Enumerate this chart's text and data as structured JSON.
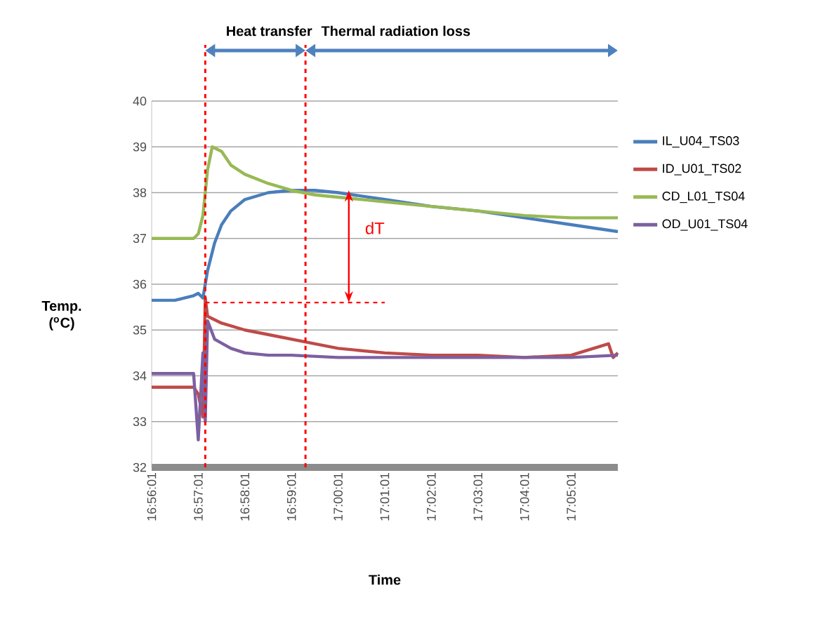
{
  "chart_data": {
    "type": "line",
    "xlabel": "Time",
    "ylabel": "Temp. ($^{o}$C)",
    "annotations": [
      "Heat transfer",
      "Thermal radiation  loss",
      "dT"
    ],
    "xlim": [
      16.93361,
      17.10028
    ],
    "ylim": [
      32,
      40
    ],
    "yticks": [
      32,
      33,
      34,
      35,
      36,
      37,
      38,
      39,
      40
    ],
    "xticks": [
      {
        "value": 16.93361,
        "label": "16:56:01"
      },
      {
        "value": 16.95028,
        "label": "16:57:01"
      },
      {
        "value": 16.96694,
        "label": "16:58:01"
      },
      {
        "value": 16.98361,
        "label": "16:59:01"
      },
      {
        "value": 17.00028,
        "label": "17:00:01"
      },
      {
        "value": 17.01694,
        "label": "17:01:01"
      },
      {
        "value": 17.03361,
        "label": "17:02:01"
      },
      {
        "value": 17.05028,
        "label": "17:03:01"
      },
      {
        "value": 17.06694,
        "label": "17:04:01"
      },
      {
        "value": 17.08361,
        "label": "17:05:01"
      }
    ],
    "grid": "y",
    "legend": "right",
    "marker": "none",
    "line_style": "solid",
    "ref_lines": [
      {
        "axis": "x",
        "value": 16.95278,
        "color": "#ff0000",
        "line_style": "dashed"
      },
      {
        "axis": "x",
        "value": 16.98861,
        "color": "#ff0000",
        "line_style": "dashed"
      }
    ],
    "series": [
      {
        "name": "IL_U04_TS03",
        "color": "#4a7ebb",
        "x": [
          16.93361,
          16.94194,
          16.94861,
          16.95028,
          16.95194,
          16.95361,
          16.95611,
          16.95861,
          16.96194,
          16.96694,
          16.97528,
          16.98361,
          16.99194,
          17.00028,
          17.01694,
          17.03361,
          17.05028,
          17.06694,
          17.08361,
          17.10028
        ],
        "values": [
          35.65,
          35.65,
          35.75,
          35.8,
          35.7,
          36.3,
          36.9,
          37.3,
          37.6,
          37.85,
          38.0,
          38.05,
          38.05,
          38.0,
          37.85,
          37.7,
          37.6,
          37.45,
          37.3,
          37.15
        ]
      },
      {
        "name": "ID_U01_TS02",
        "color": "#be4b48",
        "x": [
          16.93361,
          16.94861,
          16.95028,
          16.95194,
          16.95278,
          16.95361,
          16.95861,
          16.96694,
          16.97528,
          16.98361,
          16.99194,
          17.00028,
          17.01694,
          17.03361,
          17.05028,
          17.06694,
          17.08361,
          17.09694,
          17.09861,
          17.10028
        ],
        "values": [
          33.75,
          33.75,
          33.6,
          33.1,
          35.7,
          35.3,
          35.15,
          35.0,
          34.9,
          34.8,
          34.7,
          34.6,
          34.5,
          34.45,
          34.45,
          34.4,
          34.45,
          34.7,
          34.4,
          34.5
        ]
      },
      {
        "name": "CD_L01_TS04",
        "color": "#98b954",
        "x": [
          16.93361,
          16.94861,
          16.95028,
          16.95194,
          16.95361,
          16.95528,
          16.95861,
          16.96194,
          16.96694,
          16.97528,
          16.98361,
          16.99194,
          17.00028,
          17.01694,
          17.03361,
          17.05028,
          17.06694,
          17.08361,
          17.10028
        ],
        "values": [
          37.0,
          37.0,
          37.1,
          37.5,
          38.5,
          39.0,
          38.9,
          38.6,
          38.4,
          38.2,
          38.05,
          37.95,
          37.9,
          37.8,
          37.7,
          37.6,
          37.5,
          37.45,
          37.45
        ]
      },
      {
        "name": "OD_U01_TS04",
        "color": "#7d60a0",
        "x": [
          16.93361,
          16.94861,
          16.95028,
          16.95194,
          16.95278,
          16.95361,
          16.95611,
          16.96194,
          16.96694,
          16.97528,
          16.98361,
          17.00028,
          17.01694,
          17.03361,
          17.05028,
          17.06694,
          17.08361,
          17.10028
        ],
        "values": [
          34.05,
          34.05,
          32.6,
          34.5,
          33.0,
          35.2,
          34.8,
          34.6,
          34.5,
          34.45,
          34.45,
          34.4,
          34.4,
          34.4,
          34.4,
          34.4,
          34.4,
          34.45
        ]
      },
      {
        "type": "line",
        "color": "#ff0000",
        "line_style": "dashed",
        "x": [
          16.95278,
          17.01694
        ],
        "values": [
          35.6,
          35.6
        ]
      }
    ]
  }
}
